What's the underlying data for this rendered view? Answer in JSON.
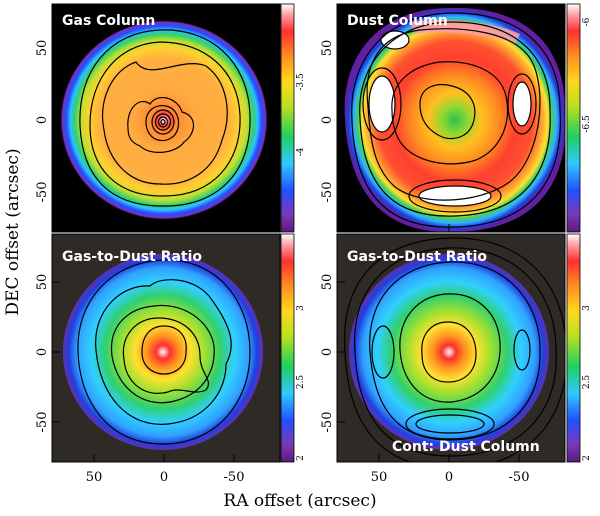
{
  "figure": {
    "ylabel": "DEC offset (arcsec)",
    "xlabel": "RA offset (arcsec)"
  },
  "chart_data": [
    {
      "type": "heatmap",
      "title": "Gas Column",
      "xlabel": "RA offset (arcsec)",
      "ylabel": "DEC offset (arcsec)",
      "xlim": [
        80,
        -80
      ],
      "ylim": [
        -80,
        80
      ],
      "x_ticks": [
        "50",
        "0",
        "-50"
      ],
      "y_ticks": [
        "50",
        "0",
        "-50"
      ],
      "colorbar": {
        "range": [
          -4.45,
          -3.2
        ],
        "ticks": [
          "-3.5",
          "-4"
        ]
      },
      "contours": "yes",
      "background": "black"
    },
    {
      "type": "heatmap",
      "title": "Dust Column",
      "xlabel": "RA offset (arcsec)",
      "ylabel": "DEC offset (arcsec)",
      "xlim": [
        80,
        -80
      ],
      "ylim": [
        -80,
        80
      ],
      "x_ticks": [
        "50",
        "0",
        "-50"
      ],
      "y_ticks": [
        "50",
        "0",
        "-50"
      ],
      "colorbar": {
        "range": [
          -6.95,
          -5.9
        ],
        "ticks": [
          "-6",
          "-6.5"
        ]
      },
      "contours": "yes",
      "background": "black"
    },
    {
      "type": "heatmap",
      "title": "Gas-to-Dust Ratio",
      "xlabel": "RA offset (arcsec)",
      "ylabel": "DEC offset (arcsec)",
      "xlim": [
        80,
        -80
      ],
      "ylim": [
        -80,
        80
      ],
      "x_ticks": [
        "50",
        "0",
        "-50"
      ],
      "y_ticks": [
        "50",
        "0",
        "-50"
      ],
      "colorbar": {
        "range": [
          1.97,
          3.3
        ],
        "ticks": [
          "3",
          "2.5",
          "2"
        ]
      },
      "contours": "yes",
      "background": "dark gray"
    },
    {
      "type": "heatmap",
      "title": "Gas-to-Dust Ratio",
      "annotation": "Cont: Dust Column",
      "xlabel": "RA offset (arcsec)",
      "ylabel": "DEC offset (arcsec)",
      "xlim": [
        80,
        -80
      ],
      "ylim": [
        -80,
        80
      ],
      "x_ticks": [
        "50",
        "0",
        "-50"
      ],
      "y_ticks": [
        "50",
        "0",
        "-50"
      ],
      "colorbar": {
        "range": [
          1.97,
          3.3
        ],
        "ticks": [
          "3",
          "2.5",
          "2"
        ]
      },
      "contours": "yes",
      "background": "dark gray"
    }
  ]
}
